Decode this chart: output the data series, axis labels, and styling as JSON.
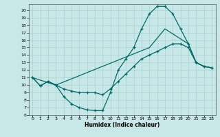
{
  "background_color": "#c8e8e8",
  "line_color": "#006868",
  "xlabel": "Humidex (Indice chaleur)",
  "xlim": [
    -0.5,
    23.5
  ],
  "ylim": [
    6,
    20.8
  ],
  "yticks": [
    6,
    7,
    8,
    9,
    10,
    11,
    12,
    13,
    14,
    15,
    16,
    17,
    18,
    19,
    20
  ],
  "xticks": [
    0,
    1,
    2,
    3,
    4,
    5,
    6,
    7,
    8,
    9,
    10,
    11,
    12,
    13,
    14,
    15,
    16,
    17,
    18,
    19,
    20,
    21,
    22,
    23
  ],
  "line1_x": [
    0,
    1,
    2,
    3,
    4,
    5,
    6,
    7,
    8,
    9,
    10,
    11,
    12,
    13,
    14,
    15,
    16,
    17,
    18,
    19,
    20,
    21,
    22,
    23
  ],
  "line1_y": [
    11.0,
    9.9,
    10.5,
    10.0,
    8.5,
    7.5,
    7.0,
    6.7,
    6.6,
    6.6,
    9.0,
    12.0,
    13.5,
    15.0,
    17.5,
    19.5,
    20.5,
    20.5,
    19.5,
    17.5,
    15.5,
    13.0,
    12.5,
    12.3
  ],
  "line2_x": [
    0,
    1,
    2,
    3,
    4,
    5,
    6,
    7,
    8,
    9,
    10,
    11,
    12,
    13,
    14,
    15,
    16,
    17,
    18,
    19,
    20,
    21,
    22,
    23
  ],
  "line2_y": [
    11.0,
    9.9,
    10.5,
    10.0,
    9.5,
    9.2,
    9.0,
    9.0,
    9.0,
    8.7,
    9.5,
    10.5,
    11.5,
    12.5,
    13.5,
    14.0,
    14.5,
    15.0,
    15.5,
    15.5,
    15.0,
    13.0,
    12.5,
    12.3
  ],
  "line3_x": [
    0,
    3,
    15,
    17,
    20,
    21,
    22,
    23
  ],
  "line3_y": [
    11.0,
    10.0,
    15.0,
    17.5,
    15.5,
    13.0,
    12.5,
    12.3
  ]
}
